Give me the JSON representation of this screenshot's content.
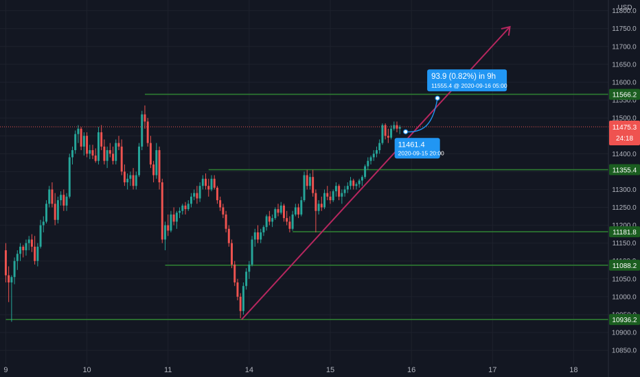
{
  "chart_data": {
    "type": "candlestick",
    "currency": "USD",
    "y_axis": {
      "ticks": [
        10850,
        10900,
        10950,
        11000,
        11050,
        11100,
        11150,
        11200,
        11250,
        11300,
        11350,
        11400,
        11450,
        11500,
        11550,
        11600,
        11650,
        11700,
        11750,
        11800
      ],
      "tick_labels": [
        "10850.0",
        "10900.0",
        "10950.0",
        "11000.0",
        "11050.0",
        "11100.0",
        "11150.0",
        "11200.0",
        "11250.0",
        "11300.0",
        "11350.0",
        "11400.0",
        "11450.0",
        "11500.0",
        "11550.0",
        "11600.0",
        "11650.0",
        "11700.0",
        "11750.0",
        "11800.0"
      ],
      "range": [
        10810,
        11830
      ]
    },
    "x_axis": {
      "range": [
        0,
        105
      ],
      "ticks": [
        {
          "x": 1,
          "label": "9"
        },
        {
          "x": 15,
          "label": "10"
        },
        {
          "x": 29,
          "label": "11"
        },
        {
          "x": 43,
          "label": "14"
        },
        {
          "x": 57,
          "label": "15"
        },
        {
          "x": 71,
          "label": "16"
        },
        {
          "x": 85,
          "label": "17"
        },
        {
          "x": 99,
          "label": "18"
        }
      ]
    },
    "current_price": {
      "value": 11475.3,
      "label": "11475.3",
      "countdown": "24:18",
      "color": "#ef5350"
    },
    "horizontal_levels": [
      {
        "value": 11566.2,
        "label": "11566.2",
        "from_x": 25
      },
      {
        "value": 11355.4,
        "label": "11355.4",
        "from_x": 36
      },
      {
        "value": 11181.8,
        "label": "11181.8",
        "from_x": 50.5
      },
      {
        "value": 11088.2,
        "label": "11088.2",
        "from_x": 28.5
      },
      {
        "value": 10936.2,
        "label": "10936.2",
        "from_x": 1
      }
    ],
    "trend_line": {
      "from": [
        41.7,
        10936.2
      ],
      "to": [
        88,
        11755
      ],
      "color": "#b7275f"
    },
    "measurement": {
      "label": "93.9 (0.82%) in 9h",
      "sub_label": "11555.4 @ 2020-09-16  05:00",
      "start_label": "11461.4",
      "start_sub_label": "2020-09-15 20:00",
      "start": [
        70,
        11461.4
      ],
      "end": [
        75.5,
        11555.4
      ]
    },
    "colors": {
      "up": "#26a69a",
      "down": "#ef5350",
      "level": "#2e7d32",
      "level_label_bg": "#1b5e20",
      "tooltip": "#2196f3",
      "grid": "#1e222d"
    },
    "candles": [
      [
        1,
        11130,
        11150,
        11040,
        11060
      ],
      [
        1.5,
        11060,
        11085,
        10985,
        11040
      ],
      [
        2,
        11040,
        11060,
        10930,
        11055
      ],
      [
        2.5,
        11055,
        11110,
        11035,
        11100
      ],
      [
        3,
        11100,
        11130,
        11075,
        11120
      ],
      [
        3.5,
        11120,
        11150,
        11100,
        11140
      ],
      [
        4,
        11140,
        11145,
        11110,
        11130
      ],
      [
        4.5,
        11130,
        11160,
        11115,
        11150
      ],
      [
        5,
        11150,
        11170,
        11130,
        11160
      ],
      [
        5.5,
        11160,
        11175,
        11125,
        11140
      ],
      [
        6,
        11140,
        11170,
        11090,
        11100
      ],
      [
        6.5,
        11100,
        11150,
        11085,
        11140
      ],
      [
        7,
        11140,
        11215,
        11135,
        11200
      ],
      [
        7.5,
        11200,
        11225,
        11180,
        11210
      ],
      [
        8,
        11210,
        11270,
        11205,
        11260
      ],
      [
        8.5,
        11260,
        11310,
        11250,
        11300
      ],
      [
        9,
        11300,
        11320,
        11250,
        11260
      ],
      [
        9.5,
        11260,
        11290,
        11200,
        11215
      ],
      [
        10,
        11215,
        11280,
        11205,
        11270
      ],
      [
        10.5,
        11270,
        11295,
        11255,
        11285
      ],
      [
        11,
        11285,
        11300,
        11240,
        11255
      ],
      [
        11.5,
        11255,
        11290,
        11240,
        11280
      ],
      [
        12,
        11280,
        11400,
        11275,
        11390
      ],
      [
        12.5,
        11390,
        11420,
        11370,
        11410
      ],
      [
        13,
        11410,
        11465,
        11400,
        11455
      ],
      [
        13.5,
        11455,
        11480,
        11430,
        11470
      ],
      [
        14,
        11470,
        11475,
        11410,
        11420
      ],
      [
        14.5,
        11420,
        11460,
        11395,
        11450
      ],
      [
        15,
        11450,
        11460,
        11390,
        11400
      ],
      [
        15.5,
        11400,
        11425,
        11385,
        11410
      ],
      [
        16,
        11410,
        11425,
        11385,
        11395
      ],
      [
        16.5,
        11395,
        11415,
        11375,
        11380
      ],
      [
        17,
        11380,
        11475,
        11370,
        11460
      ],
      [
        17.5,
        11460,
        11480,
        11410,
        11420
      ],
      [
        18,
        11420,
        11440,
        11370,
        11380
      ],
      [
        18.5,
        11380,
        11420,
        11360,
        11410
      ],
      [
        19,
        11410,
        11430,
        11390,
        11400
      ],
      [
        19.5,
        11400,
        11420,
        11370,
        11380
      ],
      [
        20,
        11380,
        11440,
        11370,
        11430
      ],
      [
        20.5,
        11430,
        11450,
        11410,
        11420
      ],
      [
        21,
        11420,
        11440,
        11340,
        11350
      ],
      [
        21.5,
        11350,
        11370,
        11310,
        11320
      ],
      [
        22,
        11320,
        11345,
        11300,
        11330
      ],
      [
        22.5,
        11330,
        11350,
        11310,
        11340
      ],
      [
        23,
        11340,
        11360,
        11300,
        11310
      ],
      [
        23.5,
        11310,
        11350,
        11300,
        11340
      ],
      [
        24,
        11340,
        11430,
        11335,
        11420
      ],
      [
        24.5,
        11420,
        11520,
        11410,
        11510
      ],
      [
        25,
        11510,
        11535,
        11470,
        11490
      ],
      [
        25.5,
        11490,
        11500,
        11420,
        11430
      ],
      [
        26,
        11430,
        11450,
        11360,
        11370
      ],
      [
        26.5,
        11370,
        11380,
        11320,
        11340
      ],
      [
        27,
        11340,
        11430,
        11330,
        11410
      ],
      [
        27.5,
        11410,
        11420,
        11300,
        11320
      ],
      [
        28,
        11320,
        11330,
        11150,
        11160
      ],
      [
        28.5,
        11160,
        11210,
        11130,
        11200
      ],
      [
        29,
        11200,
        11230,
        11170,
        11185
      ],
      [
        29.5,
        11185,
        11240,
        11180,
        11230
      ],
      [
        30,
        11230,
        11250,
        11200,
        11210
      ],
      [
        30.5,
        11210,
        11240,
        11190,
        11235
      ],
      [
        31,
        11235,
        11250,
        11220,
        11240
      ],
      [
        31.5,
        11240,
        11260,
        11230,
        11255
      ],
      [
        32,
        11255,
        11265,
        11230,
        11245
      ],
      [
        32.5,
        11245,
        11270,
        11240,
        11260
      ],
      [
        33,
        11260,
        11290,
        11250,
        11280
      ],
      [
        33.5,
        11280,
        11300,
        11270,
        11290
      ],
      [
        34,
        11290,
        11310,
        11260,
        11275
      ],
      [
        34.5,
        11275,
        11320,
        11265,
        11310
      ],
      [
        35,
        11310,
        11340,
        11300,
        11330
      ],
      [
        35.5,
        11330,
        11345,
        11300,
        11310
      ],
      [
        36,
        11310,
        11330,
        11280,
        11300
      ],
      [
        36.5,
        11300,
        11340,
        11295,
        11330
      ],
      [
        37,
        11330,
        11340,
        11300,
        11305
      ],
      [
        37.5,
        11305,
        11310,
        11260,
        11270
      ],
      [
        38,
        11270,
        11280,
        11240,
        11250
      ],
      [
        38.5,
        11250,
        11260,
        11220,
        11230
      ],
      [
        39,
        11230,
        11240,
        11180,
        11190
      ],
      [
        39.5,
        11190,
        11200,
        11140,
        11150
      ],
      [
        40,
        11150,
        11160,
        11080,
        11090
      ],
      [
        40.5,
        11090,
        11100,
        11030,
        11040
      ],
      [
        41,
        11040,
        11050,
        10990,
        11000
      ],
      [
        41.5,
        11000,
        11010,
        10940,
        10960
      ],
      [
        42,
        10960,
        11040,
        10950,
        11030
      ],
      [
        42.5,
        11030,
        11080,
        11020,
        11070
      ],
      [
        43,
        11070,
        11100,
        11050,
        11090
      ],
      [
        43.5,
        11090,
        11170,
        11085,
        11160
      ],
      [
        44,
        11160,
        11190,
        11140,
        11180
      ],
      [
        44.5,
        11180,
        11200,
        11150,
        11160
      ],
      [
        45,
        11160,
        11190,
        11150,
        11180
      ],
      [
        45.5,
        11180,
        11200,
        11170,
        11195
      ],
      [
        46,
        11195,
        11230,
        11185,
        11225
      ],
      [
        46.5,
        11225,
        11240,
        11200,
        11210
      ],
      [
        47,
        11210,
        11230,
        11195,
        11220
      ],
      [
        47.5,
        11220,
        11250,
        11215,
        11245
      ],
      [
        48,
        11245,
        11260,
        11225,
        11235
      ],
      [
        48.5,
        11235,
        11265,
        11230,
        11255
      ],
      [
        49,
        11255,
        11260,
        11210,
        11220
      ],
      [
        49.5,
        11220,
        11240,
        11200,
        11210
      ],
      [
        50,
        11210,
        11225,
        11180,
        11190
      ],
      [
        50.5,
        11190,
        11240,
        11185,
        11230
      ],
      [
        51,
        11230,
        11260,
        11225,
        11250
      ],
      [
        51.5,
        11250,
        11260,
        11220,
        11230
      ],
      [
        52,
        11230,
        11280,
        11225,
        11270
      ],
      [
        52.5,
        11270,
        11350,
        11265,
        11340
      ],
      [
        53,
        11340,
        11355,
        11300,
        11310
      ],
      [
        53.5,
        11310,
        11345,
        11300,
        11335
      ],
      [
        54,
        11335,
        11355,
        11280,
        11290
      ],
      [
        54.5,
        11290,
        11300,
        11180,
        11240
      ],
      [
        55,
        11240,
        11270,
        11230,
        11260
      ],
      [
        55.5,
        11260,
        11280,
        11240,
        11250
      ],
      [
        56,
        11250,
        11300,
        11245,
        11290
      ],
      [
        56.5,
        11290,
        11310,
        11270,
        11280
      ],
      [
        57,
        11280,
        11295,
        11260,
        11270
      ],
      [
        57.5,
        11270,
        11300,
        11265,
        11295
      ],
      [
        58,
        11295,
        11320,
        11280,
        11310
      ],
      [
        58.5,
        11310,
        11315,
        11270,
        11280
      ],
      [
        59,
        11280,
        11300,
        11260,
        11290
      ],
      [
        59.5,
        11290,
        11310,
        11280,
        11300
      ],
      [
        60,
        11300,
        11320,
        11290,
        11310
      ],
      [
        60.5,
        11310,
        11335,
        11300,
        11325
      ],
      [
        61,
        11325,
        11330,
        11300,
        11310
      ],
      [
        61.5,
        11310,
        11320,
        11300,
        11315
      ],
      [
        62,
        11315,
        11330,
        11305,
        11325
      ],
      [
        62.5,
        11325,
        11340,
        11310,
        11335
      ],
      [
        63,
        11335,
        11370,
        11330,
        11365
      ],
      [
        63.5,
        11365,
        11390,
        11355,
        11380
      ],
      [
        64,
        11380,
        11395,
        11370,
        11390
      ],
      [
        64.5,
        11390,
        11410,
        11380,
        11400
      ],
      [
        65,
        11400,
        11420,
        11390,
        11410
      ],
      [
        65.5,
        11410,
        11440,
        11400,
        11430
      ],
      [
        66,
        11430,
        11485,
        11425,
        11480
      ],
      [
        66.5,
        11480,
        11485,
        11440,
        11450
      ],
      [
        67,
        11450,
        11470,
        11430,
        11445
      ],
      [
        67.5,
        11445,
        11480,
        11440,
        11470
      ],
      [
        68,
        11470,
        11490,
        11465,
        11480
      ],
      [
        68.5,
        11480,
        11490,
        11460,
        11470
      ],
      [
        69,
        11470,
        11480,
        11455,
        11475
      ]
    ]
  }
}
